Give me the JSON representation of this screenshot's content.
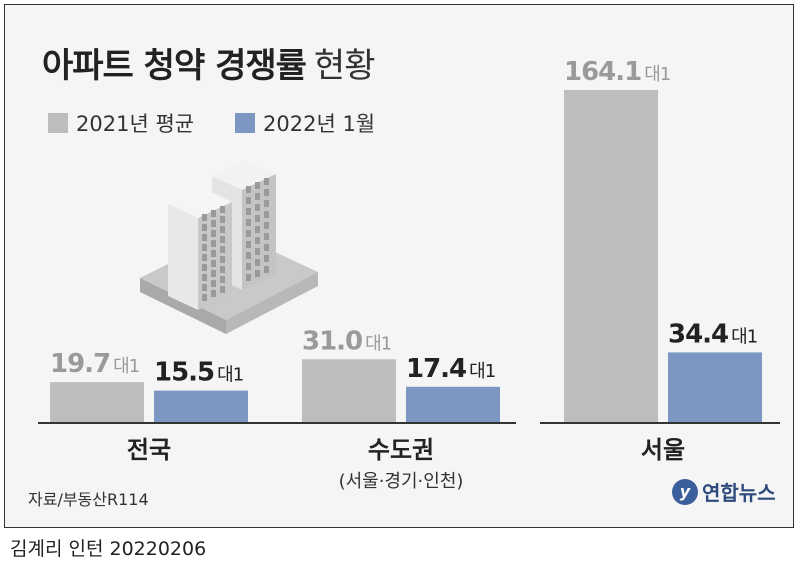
{
  "header": {
    "title": "아파트 청약 경쟁률",
    "subtitle": "현황"
  },
  "legend": {
    "items": [
      {
        "label": "2021년 평균",
        "color": "#bdbdbd"
      },
      {
        "label": "2022년 1월",
        "color": "#7b97c2"
      }
    ]
  },
  "chart_data": {
    "type": "bar",
    "categories": [
      "전국",
      "수도권",
      "서울"
    ],
    "category_notes": [
      "",
      "(서울·경기·인천)",
      ""
    ],
    "series": [
      {
        "name": "2021년 평균",
        "values": [
          19.7,
          31.0,
          164.1
        ],
        "labels": [
          "19.7",
          "31.0",
          "164.1"
        ],
        "color": "#bdbdbd"
      },
      {
        "name": "2022년 1월",
        "values": [
          15.5,
          17.4,
          34.4
        ],
        "labels": [
          "15.5",
          "17.4",
          "34.4"
        ],
        "color": "#7b97c2"
      }
    ],
    "unit": "대1",
    "ylim": [
      0,
      170
    ]
  },
  "source": "자료/부동산R114",
  "logo_text": "연합뉴스",
  "logo_mark": "y",
  "footer": "김계리 인턴  20220206"
}
